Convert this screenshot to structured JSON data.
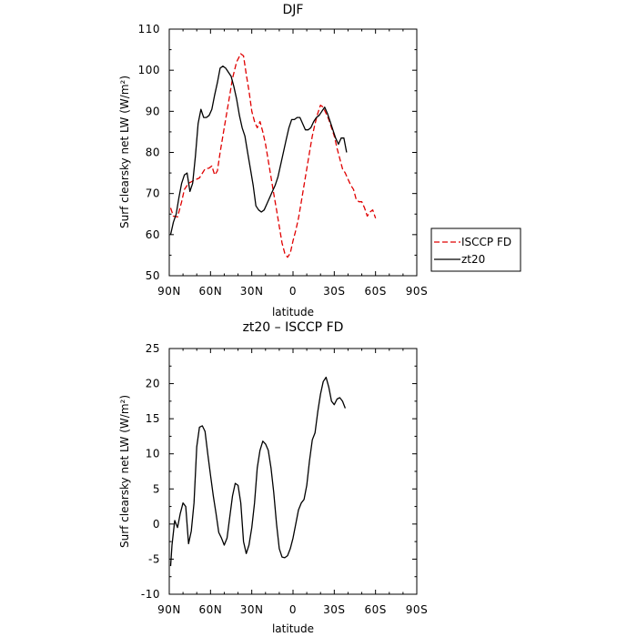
{
  "chart_data": [
    {
      "type": "line",
      "title": "DJF",
      "xlabel": "latitude",
      "ylabel": "Surf clearsky net LW (W/m²)",
      "xlim": [
        90,
        -90
      ],
      "ylim": [
        50,
        110
      ],
      "x_ticks": [
        {
          "value": 90,
          "label": "90N"
        },
        {
          "value": 60,
          "label": "60N"
        },
        {
          "value": 30,
          "label": "30N"
        },
        {
          "value": 0,
          "label": "0"
        },
        {
          "value": -30,
          "label": "30S"
        },
        {
          "value": -60,
          "label": "60S"
        },
        {
          "value": -90,
          "label": "90S"
        }
      ],
      "y_ticks": [
        50,
        60,
        70,
        80,
        90,
        100,
        110
      ],
      "legend_position": "outside-right",
      "series": [
        {
          "name": "ISCCP FD",
          "color": "#e00000",
          "dash": "dashed",
          "points": [
            [
              89,
              66.5
            ],
            [
              87,
              64.5
            ],
            [
              84,
              64.3
            ],
            [
              81,
              68
            ],
            [
              79,
              71
            ],
            [
              76,
              72.5
            ],
            [
              72,
              73.2
            ],
            [
              68,
              73.8
            ],
            [
              64,
              76
            ],
            [
              61,
              76.2
            ],
            [
              59,
              76.7
            ],
            [
              57,
              74.5
            ],
            [
              55,
              75.5
            ],
            [
              53,
              80
            ],
            [
              50,
              86
            ],
            [
              47,
              92
            ],
            [
              44,
              98
            ],
            [
              41,
              102
            ],
            [
              38,
              104
            ],
            [
              36,
              103.5
            ],
            [
              34,
              99
            ],
            [
              32,
              95
            ],
            [
              30,
              90
            ],
            [
              28,
              87.5
            ],
            [
              26,
              86
            ],
            [
              24,
              87.5
            ],
            [
              22,
              85
            ],
            [
              20,
              82
            ],
            [
              18,
              78
            ],
            [
              16,
              74
            ],
            [
              14,
              70
            ],
            [
              12,
              66
            ],
            [
              10,
              62
            ],
            [
              8,
              58
            ],
            [
              6,
              55.5
            ],
            [
              4,
              54.5
            ],
            [
              2,
              55.5
            ],
            [
              0,
              58.5
            ],
            [
              -2,
              61
            ],
            [
              -4,
              64
            ],
            [
              -6,
              68
            ],
            [
              -8,
              72
            ],
            [
              -10,
              76
            ],
            [
              -12,
              80
            ],
            [
              -14,
              84
            ],
            [
              -16,
              87
            ],
            [
              -18,
              89.5
            ],
            [
              -20,
              91.5
            ],
            [
              -22,
              91
            ],
            [
              -24,
              89.5
            ],
            [
              -26,
              88
            ],
            [
              -28,
              86
            ],
            [
              -30,
              84
            ],
            [
              -32,
              81
            ],
            [
              -34,
              78.5
            ],
            [
              -36,
              76
            ],
            [
              -38,
              75
            ],
            [
              -40,
              73.5
            ],
            [
              -42,
              72
            ],
            [
              -44,
              71
            ],
            [
              -46,
              68.5
            ],
            [
              -48,
              68
            ],
            [
              -50,
              68
            ],
            [
              -52,
              66.5
            ],
            [
              -54,
              64.5
            ],
            [
              -56,
              65.5
            ],
            [
              -58,
              66
            ],
            [
              -60,
              64
            ]
          ]
        },
        {
          "name": "zt20",
          "color": "#000000",
          "dash": "solid",
          "points": [
            [
              89,
              60
            ],
            [
              87,
              63
            ],
            [
              85,
              65
            ],
            [
              83,
              69
            ],
            [
              81,
              72.5
            ],
            [
              79,
              74.5
            ],
            [
              77,
              75
            ],
            [
              75,
              70.5
            ],
            [
              73,
              72.5
            ],
            [
              71,
              79
            ],
            [
              69,
              87
            ],
            [
              67,
              90.5
            ],
            [
              65,
              88.5
            ],
            [
              63,
              88.5
            ],
            [
              61,
              89
            ],
            [
              59,
              90.5
            ],
            [
              57,
              94
            ],
            [
              55,
              97
            ],
            [
              53,
              100.5
            ],
            [
              51,
              101
            ],
            [
              49,
              100.5
            ],
            [
              47,
              99.5
            ],
            [
              45,
              98.5
            ],
            [
              43,
              96
            ],
            [
              41,
              93
            ],
            [
              39,
              89
            ],
            [
              37,
              86
            ],
            [
              35,
              84
            ],
            [
              33,
              80
            ],
            [
              31,
              76
            ],
            [
              29,
              72
            ],
            [
              27,
              67
            ],
            [
              25,
              66
            ],
            [
              23,
              65.5
            ],
            [
              21,
              66
            ],
            [
              19,
              67.5
            ],
            [
              17,
              69
            ],
            [
              15,
              70.5
            ],
            [
              13,
              72
            ],
            [
              11,
              74
            ],
            [
              9,
              77
            ],
            [
              7,
              80
            ],
            [
              5,
              83
            ],
            [
              3,
              86
            ],
            [
              1,
              88
            ],
            [
              -1,
              88
            ],
            [
              -3,
              88.5
            ],
            [
              -5,
              88.5
            ],
            [
              -7,
              87
            ],
            [
              -9,
              85.5
            ],
            [
              -11,
              85.5
            ],
            [
              -13,
              86
            ],
            [
              -15,
              87.5
            ],
            [
              -17,
              88.5
            ],
            [
              -19,
              89
            ],
            [
              -21,
              90
            ],
            [
              -23,
              91
            ],
            [
              -25,
              89.5
            ],
            [
              -27,
              87.5
            ],
            [
              -29,
              85.5
            ],
            [
              -31,
              83.5
            ],
            [
              -33,
              82
            ],
            [
              -35,
              83.5
            ],
            [
              -37,
              83.5
            ],
            [
              -39,
              80
            ]
          ]
        }
      ]
    },
    {
      "type": "line",
      "title": "zt20 – ISCCP FD",
      "xlabel": "latitude",
      "ylabel": "Surf clearsky net LW (W/m²)",
      "xlim": [
        90,
        -90
      ],
      "ylim": [
        -10,
        25
      ],
      "x_ticks": [
        {
          "value": 90,
          "label": "90N"
        },
        {
          "value": 60,
          "label": "60N"
        },
        {
          "value": 30,
          "label": "30N"
        },
        {
          "value": 0,
          "label": "0"
        },
        {
          "value": -30,
          "label": "30S"
        },
        {
          "value": -60,
          "label": "60S"
        },
        {
          "value": -90,
          "label": "90S"
        }
      ],
      "y_ticks": [
        -10,
        -5,
        0,
        5,
        10,
        15,
        20,
        25
      ],
      "series": [
        {
          "color": "#000000",
          "dash": "solid",
          "points": [
            [
              89,
              -6
            ],
            [
              88,
              -3
            ],
            [
              86,
              0.5
            ],
            [
              84,
              -0.5
            ],
            [
              82,
              1.5
            ],
            [
              80,
              3
            ],
            [
              78,
              2.5
            ],
            [
              76,
              -2.8
            ],
            [
              74,
              -1
            ],
            [
              72,
              3
            ],
            [
              70,
              11
            ],
            [
              68,
              13.8
            ],
            [
              66,
              14
            ],
            [
              64,
              13.2
            ],
            [
              62,
              10
            ],
            [
              60,
              7
            ],
            [
              58,
              4
            ],
            [
              56,
              1.5
            ],
            [
              54,
              -1.2
            ],
            [
              52,
              -2
            ],
            [
              50,
              -3
            ],
            [
              48,
              -2
            ],
            [
              46,
              1
            ],
            [
              44,
              4
            ],
            [
              42,
              5.8
            ],
            [
              40,
              5.5
            ],
            [
              38,
              3
            ],
            [
              36,
              -2.5
            ],
            [
              34,
              -4.2
            ],
            [
              32,
              -3
            ],
            [
              30,
              -0.5
            ],
            [
              28,
              3
            ],
            [
              26,
              8
            ],
            [
              24,
              10.5
            ],
            [
              22,
              11.8
            ],
            [
              20,
              11.4
            ],
            [
              18,
              10.5
            ],
            [
              16,
              8
            ],
            [
              14,
              4.5
            ],
            [
              12,
              0
            ],
            [
              10,
              -3.5
            ],
            [
              8,
              -4.7
            ],
            [
              6,
              -4.8
            ],
            [
              4,
              -4.5
            ],
            [
              2,
              -3.5
            ],
            [
              0,
              -2
            ],
            [
              -2,
              0
            ],
            [
              -4,
              2
            ],
            [
              -6,
              3
            ],
            [
              -8,
              3.5
            ],
            [
              -10,
              5.5
            ],
            [
              -12,
              9
            ],
            [
              -14,
              12
            ],
            [
              -16,
              13
            ],
            [
              -18,
              16
            ],
            [
              -20,
              18.5
            ],
            [
              -22,
              20.3
            ],
            [
              -24,
              20.9
            ],
            [
              -26,
              19.5
            ],
            [
              -28,
              17.5
            ],
            [
              -30,
              17
            ],
            [
              -32,
              17.8
            ],
            [
              -34,
              18
            ],
            [
              -36,
              17.5
            ],
            [
              -38,
              16.5
            ]
          ]
        }
      ]
    }
  ]
}
